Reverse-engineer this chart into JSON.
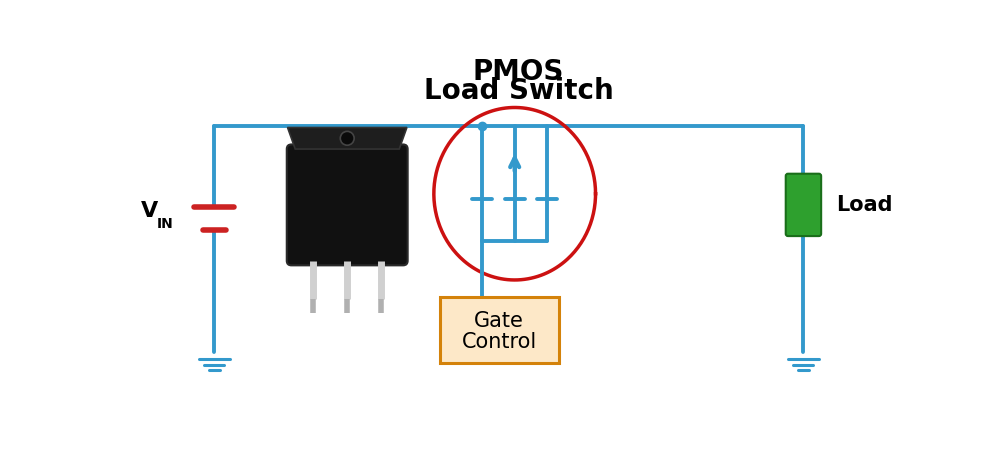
{
  "title_line1": "PMOS",
  "title_line2": "Load Switch",
  "title_fontsize": 20,
  "bg_color": "#ffffff",
  "wire_color": "#3399cc",
  "wire_lw": 2.8,
  "battery_color": "#cc2222",
  "gate_box_facecolor": "#fde8c8",
  "gate_box_edgecolor": "#d4820a",
  "gate_text_line1": "Gate",
  "gate_text_line2": "Control",
  "gate_fontsize": 15,
  "load_color": "#2ea02e",
  "load_edge_color": "#1a6e1a",
  "circle_color": "#cc1111",
  "vin_fontsize": 16,
  "load_text": "Load",
  "ground_color": "#3399cc",
  "pkg_body_color": "#111111",
  "pkg_tab_color": "#1e1e1e",
  "pkg_pin_color": "#bbbbbb",
  "pkg_hole_edge": "#444444"
}
